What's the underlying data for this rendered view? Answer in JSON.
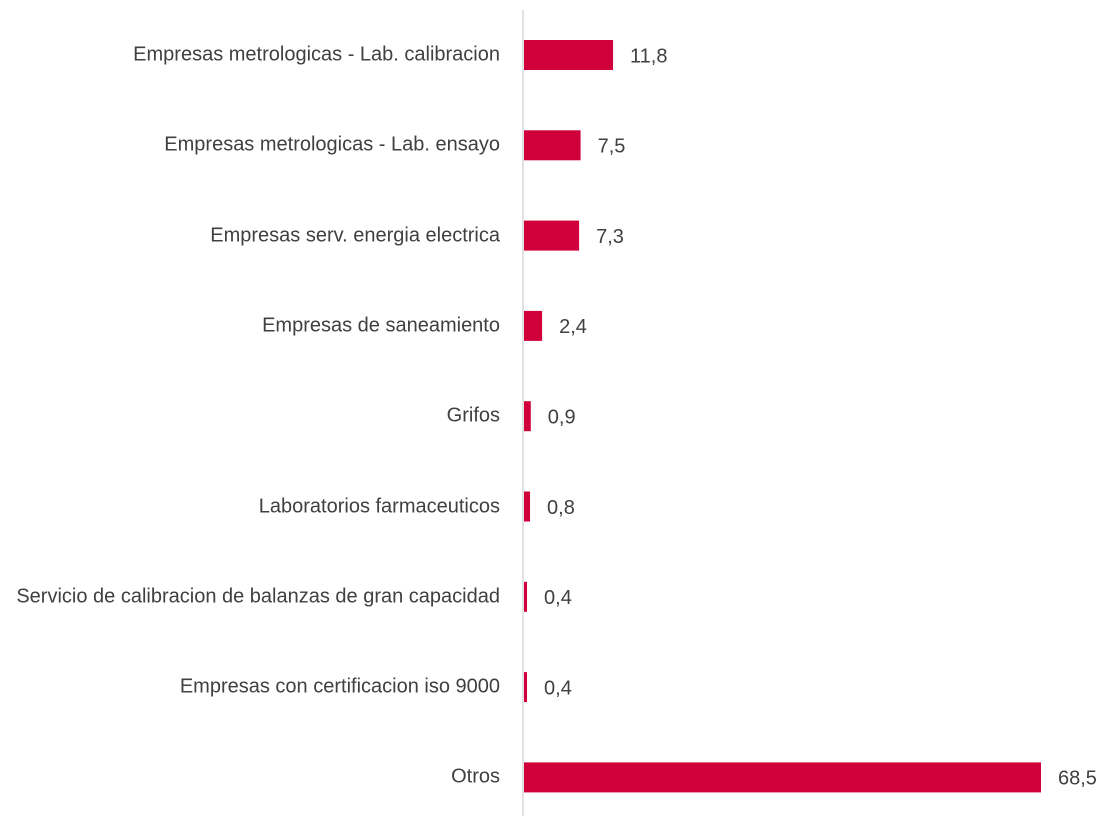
{
  "chart_data": {
    "type": "bar",
    "orientation": "horizontal",
    "categories": [
      "Empresas metrologicas - Lab. calibracion",
      "Empresas metrologicas - Lab. ensayo",
      "Empresas serv. energia electrica",
      "Empresas de saneamiento",
      "Grifos",
      "Laboratorios farmaceuticos",
      "Servicio de calibracion de balanzas de gran capacidad",
      "Empresas con certificacion iso 9000",
      "Otros"
    ],
    "values": [
      11.8,
      7.5,
      7.3,
      2.4,
      0.9,
      0.8,
      0.4,
      0.4,
      68.5
    ],
    "value_labels": [
      "11,8",
      "7,5",
      "7,3",
      "2,4",
      "0,9",
      "0,8",
      "0,4",
      "0,4",
      "68,5"
    ],
    "color": "#d0003a"
  }
}
